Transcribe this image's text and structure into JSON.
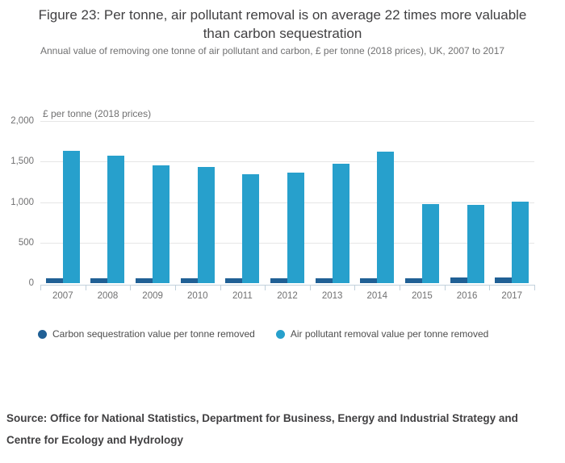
{
  "title": "Figure 23: Per tonne, air pollutant removal is on average 22 times more valuable than carbon sequestration",
  "subtitle": "Annual value of removing one tonne of air pollutant and carbon, £ per tonne (2018 prices), UK, 2007 to 2017",
  "chart_data": {
    "type": "bar",
    "title": "Figure 23: Per tonne, air pollutant removal is on average 22 times more valuable than carbon sequestration",
    "subtitle": "Annual value of removing one tonne of air pollutant and carbon, £ per tonne (2018 prices), UK, 2007 to 2017",
    "unit_label": "£ per tonne (2018 prices)",
    "categories": [
      "2007",
      "2008",
      "2009",
      "2010",
      "2011",
      "2012",
      "2013",
      "2014",
      "2015",
      "2016",
      "2017"
    ],
    "series": [
      {
        "key": "carbon",
        "name": "Carbon sequestration value per tonne removed",
        "color": "#206095",
        "values": [
          56,
          56,
          57,
          58,
          58,
          59,
          60,
          61,
          62,
          68,
          69
        ]
      },
      {
        "key": "air",
        "name": "Air pollutant removal value per tonne removed",
        "color": "#27a0cc",
        "values": [
          1630,
          1575,
          1455,
          1435,
          1345,
          1360,
          1475,
          1625,
          975,
          970,
          1005
        ]
      }
    ],
    "ylim": [
      0,
      2000
    ],
    "yticks": [
      0,
      500,
      1000,
      1500,
      2000
    ],
    "ytick_labels": [
      "0",
      "500",
      "1,000",
      "1,500",
      "2,000"
    ],
    "grid": true,
    "legend_position": "bottom"
  },
  "colors": {
    "grid": "#e6e6e6",
    "axis": "#c2d1dc",
    "text_dark": "#414042",
    "text_gray": "#707071"
  },
  "source": {
    "line1": "Source: Office for National Statistics, Department for Business, Energy and Industrial Strategy and",
    "line2": "Centre for Ecology and Hydrology"
  }
}
